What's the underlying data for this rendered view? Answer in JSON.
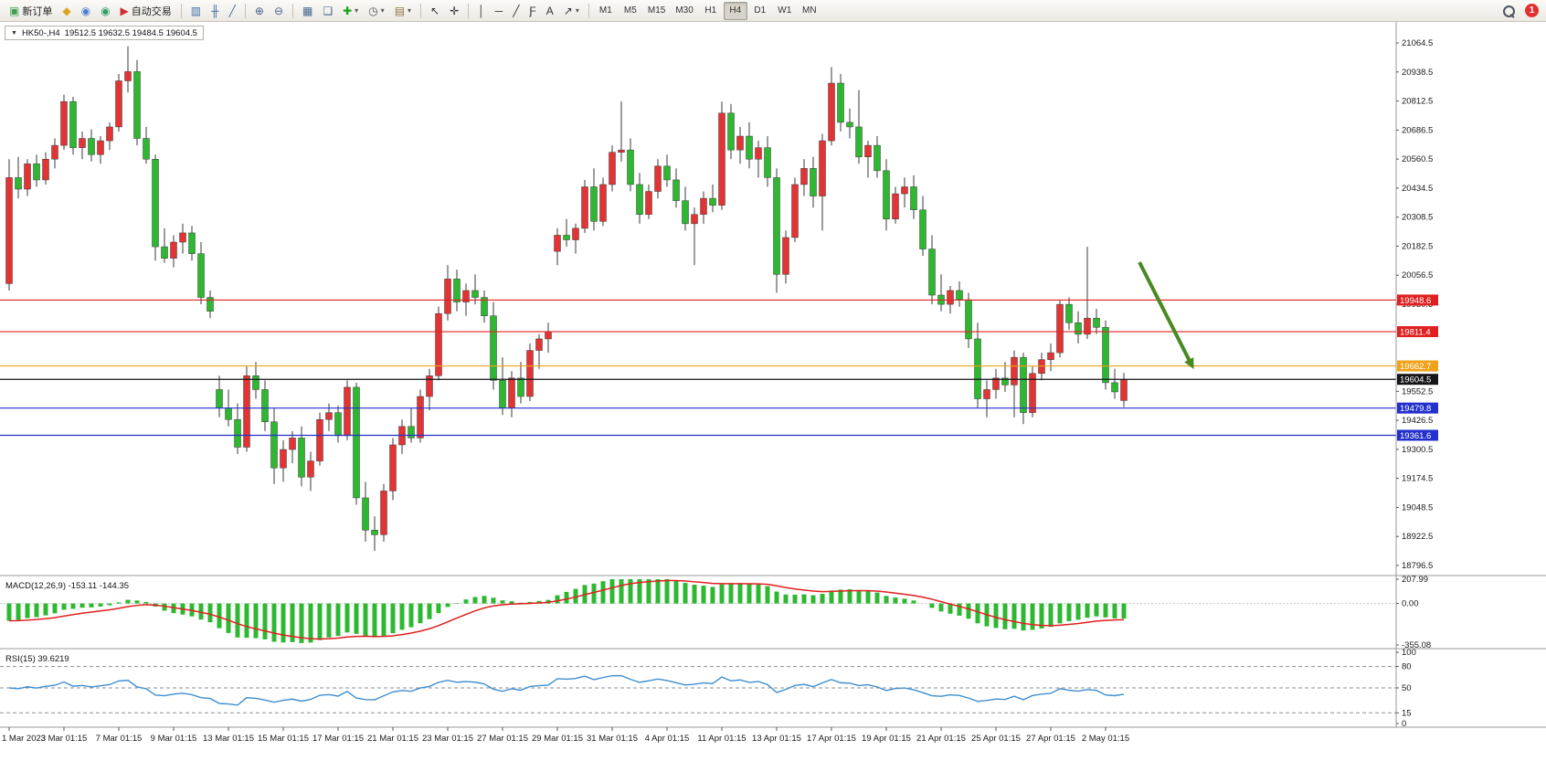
{
  "toolbar": {
    "dropdown_caret": "▾",
    "groups": [
      [
        {
          "name": "new-order-button",
          "icon": "new-order-icon",
          "glyph": "▣",
          "color": "#3f9e4f",
          "label": "新订单"
        },
        {
          "name": "gold-account-button",
          "icon": "gold-coin-icon",
          "glyph": "◆",
          "color": "#dca41e"
        },
        {
          "name": "profile-button",
          "icon": "profile-icon",
          "glyph": "◉",
          "color": "#4a7fd0"
        },
        {
          "name": "community-button",
          "icon": "headset-icon",
          "glyph": "◉",
          "color": "#2f9e63"
        },
        {
          "name": "auto-trading-button",
          "icon": "autotrading-icon",
          "glyph": "▶",
          "color": "#d03030",
          "label": "自动交易"
        }
      ],
      [
        {
          "name": "chart-bars-button",
          "icon": "bar-chart-icon",
          "glyph": "▥",
          "color": "#3c6ca8"
        },
        {
          "name": "chart-candles-button",
          "icon": "candlestick-chart-icon",
          "glyph": "╫",
          "color": "#3c6ca8"
        },
        {
          "name": "chart-line-button",
          "icon": "line-chart-icon",
          "glyph": "╱",
          "color": "#3c6ca8"
        }
      ],
      [
        {
          "name": "zoom-in-button",
          "icon": "zoom-in-icon",
          "glyph": "⊕",
          "color": "#44618f"
        },
        {
          "name": "zoom-out-button",
          "icon": "zoom-out-icon",
          "glyph": "⊖",
          "color": "#44618f"
        }
      ],
      [
        {
          "name": "tile-windows-button",
          "icon": "tile-windows-icon",
          "glyph": "▦",
          "color": "#44618f"
        },
        {
          "name": "auto-arrange-button",
          "icon": "arrange-windows-icon",
          "glyph": "❏",
          "color": "#44618f"
        },
        {
          "name": "indicators-button",
          "icon": "add-indicator-icon",
          "glyph": "✚",
          "color": "#18a018",
          "dropdown": true
        },
        {
          "name": "periods-button",
          "icon": "clock-icon",
          "glyph": "◷",
          "color": "#555555",
          "dropdown": true
        },
        {
          "name": "templates-button",
          "icon": "template-icon",
          "glyph": "▤",
          "color": "#8a7646",
          "dropdown": true
        }
      ],
      [
        {
          "name": "cursor-button",
          "icon": "cursor-icon",
          "glyph": "↖",
          "color": "#333333"
        },
        {
          "name": "crosshair-button",
          "icon": "crosshair-icon",
          "glyph": "✛",
          "color": "#333333"
        }
      ],
      [
        {
          "name": "vertical-line-button",
          "icon": "vertical-line-icon",
          "glyph": "│",
          "color": "#333333"
        },
        {
          "name": "horizontal-line-button",
          "icon": "horizontal-line-icon",
          "glyph": "─",
          "color": "#333333"
        },
        {
          "name": "trendline-button",
          "icon": "trendline-icon",
          "glyph": "╱",
          "color": "#333333"
        },
        {
          "name": "fibonacci-button",
          "icon": "fibonacci-icon",
          "glyph": "Ƒ",
          "color": "#333333"
        },
        {
          "name": "text-button",
          "icon": "text-icon",
          "glyph": "A",
          "color": "#333333"
        },
        {
          "name": "arrows-button",
          "icon": "arrow-object-icon",
          "glyph": "↗",
          "color": "#333333",
          "dropdown": true
        }
      ]
    ],
    "timeframes": {
      "items": [
        "M1",
        "M5",
        "M15",
        "M30",
        "H1",
        "H4",
        "D1",
        "W1",
        "MN"
      ],
      "active": "H4"
    },
    "right": {
      "search_icon": "search-icon",
      "notification_count": "1"
    }
  },
  "chart": {
    "collapse_arrow": "▼",
    "title": "HK50-,H4",
    "ohlc_text": "19512.5 19632.5 19484.5 19604.5",
    "macd_label": "MACD(12,26,9) -153.11 -144.35",
    "rsi_label": "RSI(15) 39.6219"
  },
  "chart_data": {
    "type": "candlestick",
    "symbol": "HK50-",
    "timeframe": "H4",
    "current_bar": {
      "open": 19512.5,
      "high": 19632.5,
      "low": 19484.5,
      "close": 19604.5
    },
    "bull_color": "#e23434",
    "bear_color": "#2eb832",
    "price_axis": {
      "top_price": 21064.5,
      "bottom_price": 18796.5,
      "labels": [
        "21064.5",
        "20938.5",
        "20812.5",
        "20686.5",
        "20560.5",
        "20434.5",
        "20308.5",
        "20182.5",
        "20056.5",
        "19930.5",
        "19552.5",
        "19426.5",
        "19300.5",
        "19174.5",
        "19048.5",
        "18922.5",
        "18796.5"
      ]
    },
    "hlines": [
      {
        "price": 19948.6,
        "label": "19948.6",
        "color": "#e02020"
      },
      {
        "price": 19811.4,
        "label": "19811.4",
        "color": "#e02020"
      },
      {
        "price": 19662.7,
        "label": "19662.7",
        "color": "#efa21a"
      },
      {
        "price": 19604.5,
        "label": "19604.5",
        "color": "#15151a"
      },
      {
        "price": 19479.8,
        "label": "19479.8",
        "color": "#2330cc"
      },
      {
        "price": 19361.6,
        "label": "19361.6",
        "color": "#2330cc"
      }
    ],
    "x_labels": [
      "1 Mar 2023",
      "3 Mar 01:15",
      "7 Mar 01:15",
      "9 Mar 01:15",
      "13 Mar 01:15",
      "15 Mar 01:15",
      "17 Mar 01:15",
      "21 Mar 01:15",
      "23 Mar 01:15",
      "27 Mar 01:15",
      "29 Mar 01:15",
      "31 Mar 01:15",
      "4 Apr 01:15",
      "11 Apr 01:15",
      "13 Apr 01:15",
      "17 Apr 01:15",
      "19 Apr 01:15",
      "21 Apr 01:15",
      "25 Apr 01:15",
      "27 Apr 01:15",
      "2 May 01:15"
    ],
    "x_label_step": 6,
    "candles": [
      [
        20020,
        20560,
        19990,
        20480
      ],
      [
        20480,
        20570,
        20390,
        20430
      ],
      [
        20430,
        20560,
        20400,
        20540
      ],
      [
        20540,
        20580,
        20440,
        20470
      ],
      [
        20470,
        20590,
        20450,
        20560
      ],
      [
        20560,
        20650,
        20520,
        20620
      ],
      [
        20620,
        20840,
        20600,
        20810
      ],
      [
        20810,
        20830,
        20580,
        20610
      ],
      [
        20610,
        20680,
        20560,
        20650
      ],
      [
        20650,
        20690,
        20550,
        20580
      ],
      [
        20580,
        20660,
        20540,
        20640
      ],
      [
        20640,
        20720,
        20600,
        20700
      ],
      [
        20700,
        20930,
        20680,
        20900
      ],
      [
        20900,
        21050,
        20850,
        20940
      ],
      [
        20940,
        20990,
        20620,
        20650
      ],
      [
        20650,
        20700,
        20540,
        20560
      ],
      [
        20560,
        20580,
        20120,
        20180
      ],
      [
        20180,
        20260,
        20110,
        20130
      ],
      [
        20130,
        20230,
        20090,
        20200
      ],
      [
        20200,
        20280,
        20150,
        20240
      ],
      [
        20240,
        20270,
        20120,
        20150
      ],
      [
        20150,
        20200,
        19930,
        19960
      ],
      [
        19960,
        19990,
        19870,
        19900
      ],
      [
        19560,
        19620,
        19440,
        19480
      ],
      [
        19480,
        19560,
        19400,
        19430
      ],
      [
        19430,
        19500,
        19280,
        19310
      ],
      [
        19310,
        19660,
        19290,
        19620
      ],
      [
        19620,
        19680,
        19520,
        19560
      ],
      [
        19560,
        19600,
        19380,
        19420
      ],
      [
        19420,
        19480,
        19150,
        19220
      ],
      [
        19220,
        19340,
        19160,
        19300
      ],
      [
        19300,
        19380,
        19240,
        19350
      ],
      [
        19350,
        19400,
        19140,
        19180
      ],
      [
        19180,
        19290,
        19120,
        19250
      ],
      [
        19250,
        19460,
        19230,
        19430
      ],
      [
        19430,
        19500,
        19380,
        19460
      ],
      [
        19460,
        19490,
        19330,
        19360
      ],
      [
        19360,
        19600,
        19340,
        19570
      ],
      [
        19570,
        19590,
        19060,
        19090
      ],
      [
        19090,
        19160,
        18900,
        18950
      ],
      [
        18950,
        19010,
        18860,
        18930
      ],
      [
        18930,
        19150,
        18900,
        19120
      ],
      [
        19120,
        19350,
        19080,
        19320
      ],
      [
        19320,
        19430,
        19280,
        19400
      ],
      [
        19400,
        19480,
        19330,
        19350
      ],
      [
        19350,
        19560,
        19330,
        19530
      ],
      [
        19530,
        19650,
        19470,
        19620
      ],
      [
        19620,
        19920,
        19600,
        19890
      ],
      [
        19890,
        20100,
        19860,
        20040
      ],
      [
        20040,
        20080,
        19900,
        19940
      ],
      [
        19940,
        20020,
        19880,
        19990
      ],
      [
        19990,
        20060,
        19930,
        19960
      ],
      [
        19960,
        19990,
        19850,
        19880
      ],
      [
        19880,
        19940,
        19560,
        19600
      ],
      [
        19600,
        19700,
        19450,
        19480
      ],
      [
        19480,
        19640,
        19440,
        19610
      ],
      [
        19610,
        19680,
        19500,
        19530
      ],
      [
        19530,
        19760,
        19510,
        19730
      ],
      [
        19730,
        19800,
        19650,
        19780
      ],
      [
        19780,
        19850,
        19720,
        19810
      ],
      [
        20160,
        20260,
        20100,
        20230
      ],
      [
        20230,
        20300,
        20180,
        20210
      ],
      [
        20210,
        20280,
        20150,
        20260
      ],
      [
        20260,
        20470,
        20240,
        20440
      ],
      [
        20440,
        20520,
        20250,
        20290
      ],
      [
        20290,
        20480,
        20270,
        20450
      ],
      [
        20450,
        20620,
        20420,
        20590
      ],
      [
        20590,
        20810,
        20550,
        20600
      ],
      [
        20600,
        20650,
        20420,
        20450
      ],
      [
        20450,
        20500,
        20280,
        20320
      ],
      [
        20320,
        20450,
        20300,
        20420
      ],
      [
        20420,
        20560,
        20390,
        20530
      ],
      [
        20530,
        20580,
        20440,
        20470
      ],
      [
        20470,
        20520,
        20350,
        20380
      ],
      [
        20380,
        20440,
        20250,
        20280
      ],
      [
        20280,
        20350,
        20100,
        20320
      ],
      [
        20320,
        20420,
        20280,
        20390
      ],
      [
        20390,
        20450,
        20330,
        20360
      ],
      [
        20360,
        20810,
        20340,
        20760
      ],
      [
        20760,
        20800,
        20560,
        20600
      ],
      [
        20600,
        20700,
        20540,
        20660
      ],
      [
        20660,
        20720,
        20520,
        20560
      ],
      [
        20560,
        20640,
        20480,
        20610
      ],
      [
        20610,
        20660,
        20440,
        20480
      ],
      [
        20480,
        20520,
        19980,
        20060
      ],
      [
        20060,
        20250,
        20020,
        20220
      ],
      [
        20220,
        20480,
        20200,
        20450
      ],
      [
        20450,
        20560,
        20400,
        20520
      ],
      [
        20520,
        20570,
        20350,
        20400
      ],
      [
        20400,
        20670,
        20250,
        20640
      ],
      [
        20640,
        20960,
        20620,
        20890
      ],
      [
        20890,
        20930,
        20680,
        20720
      ],
      [
        20720,
        20780,
        20650,
        20700
      ],
      [
        20700,
        20860,
        20540,
        20570
      ],
      [
        20570,
        20640,
        20480,
        20620
      ],
      [
        20620,
        20660,
        20480,
        20510
      ],
      [
        20510,
        20560,
        20250,
        20300
      ],
      [
        20300,
        20440,
        20280,
        20410
      ],
      [
        20410,
        20480,
        20350,
        20440
      ],
      [
        20440,
        20490,
        20300,
        20340
      ],
      [
        20340,
        20400,
        20140,
        20170
      ],
      [
        20170,
        20230,
        19930,
        19970
      ],
      [
        19970,
        20060,
        19900,
        19930
      ],
      [
        19930,
        20010,
        19890,
        19990
      ],
      [
        19990,
        20030,
        19920,
        19950
      ],
      [
        19950,
        19980,
        19740,
        19780
      ],
      [
        19780,
        19850,
        19480,
        19520
      ],
      [
        19520,
        19600,
        19440,
        19560
      ],
      [
        19560,
        19650,
        19520,
        19610
      ],
      [
        19610,
        19680,
        19550,
        19580
      ],
      [
        19580,
        19730,
        19440,
        19700
      ],
      [
        19700,
        19720,
        19410,
        19460
      ],
      [
        19460,
        19660,
        19440,
        19630
      ],
      [
        19630,
        19720,
        19600,
        19690
      ],
      [
        19690,
        19760,
        19640,
        19720
      ],
      [
        19720,
        19950,
        19700,
        19930
      ],
      [
        19930,
        19960,
        19820,
        19850
      ],
      [
        19850,
        19900,
        19760,
        19800
      ],
      [
        19800,
        20180,
        19780,
        19870
      ],
      [
        19870,
        19910,
        19800,
        19830
      ],
      [
        19830,
        19860,
        19560,
        19590
      ],
      [
        19590,
        19650,
        19520,
        19550
      ],
      [
        19512.5,
        19632.5,
        19484.5,
        19604.5
      ]
    ],
    "arrow": {
      "from_index": 123.7,
      "from_price": 20113,
      "to_index": 129.2,
      "to_price": 19684,
      "color": "#478a22"
    },
    "macd": {
      "name": "MACD",
      "params": [
        12,
        26,
        9
      ],
      "value": -153.11,
      "signal_value": -144.35,
      "scale_labels": [
        "207.99",
        "0.00",
        "-355.08"
      ],
      "scale_values": [
        207.99,
        0,
        -355.08
      ],
      "histogram_color": "#2eb832",
      "signal_color": "#e02020"
    },
    "rsi": {
      "name": "RSI",
      "period": 15,
      "value": 39.6219,
      "levels": [
        80,
        50,
        15
      ],
      "scale_labels": [
        "100",
        "80",
        "50",
        "15",
        "0"
      ],
      "scale_values": [
        100,
        80,
        50,
        15,
        0
      ],
      "line_color": "#3f8ed0"
    }
  }
}
